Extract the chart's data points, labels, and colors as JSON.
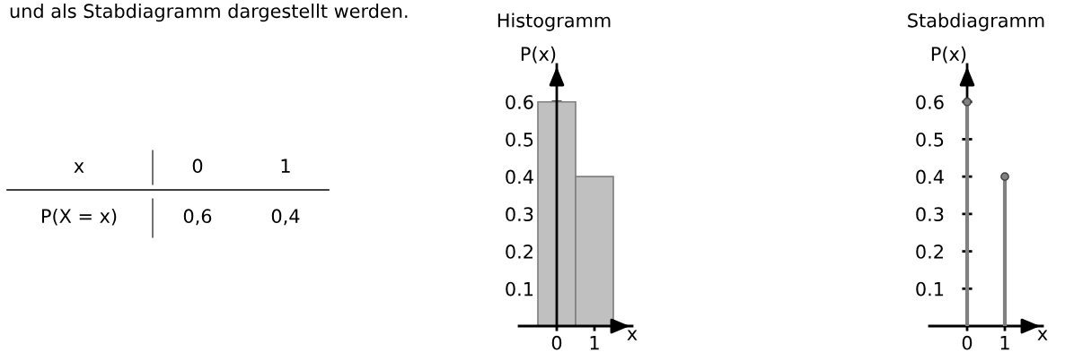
{
  "chart_data": [
    {
      "type": "other",
      "annotations": [
        "und als Stabdiagramm dargestellt werden.",
        "x",
        "P(X = x)"
      ],
      "categories": [
        "0",
        "1"
      ],
      "value_labels": [
        "0,6",
        "0,4"
      ]
    },
    {
      "type": "histogram",
      "title": "Histogramm",
      "ylabel": "P(x)",
      "xlabel": "x",
      "bins": [
        -0.5,
        0.5,
        1.5
      ],
      "values": [
        0.6,
        0.4
      ],
      "color": "#c0c0c0",
      "xlim": [
        -1,
        2
      ],
      "xticks": [
        0,
        1
      ],
      "ylim": [
        0,
        0.7
      ],
      "yticks": [
        0.1,
        0.2,
        0.3,
        0.4,
        0.5,
        0.6
      ]
    },
    {
      "type": "lollipop",
      "title": "Stabdiagramm",
      "ylabel": "P(x)",
      "xlabel": "x",
      "x": [
        0,
        1
      ],
      "values": [
        0.6,
        0.4
      ],
      "color": "#808080",
      "marker": "circle",
      "xlim": [
        -1,
        2
      ],
      "xticks": [
        0,
        1
      ],
      "ylim": [
        0,
        0.7
      ],
      "yticks": [
        0.1,
        0.2,
        0.3,
        0.4,
        0.5,
        0.6
      ]
    }
  ]
}
